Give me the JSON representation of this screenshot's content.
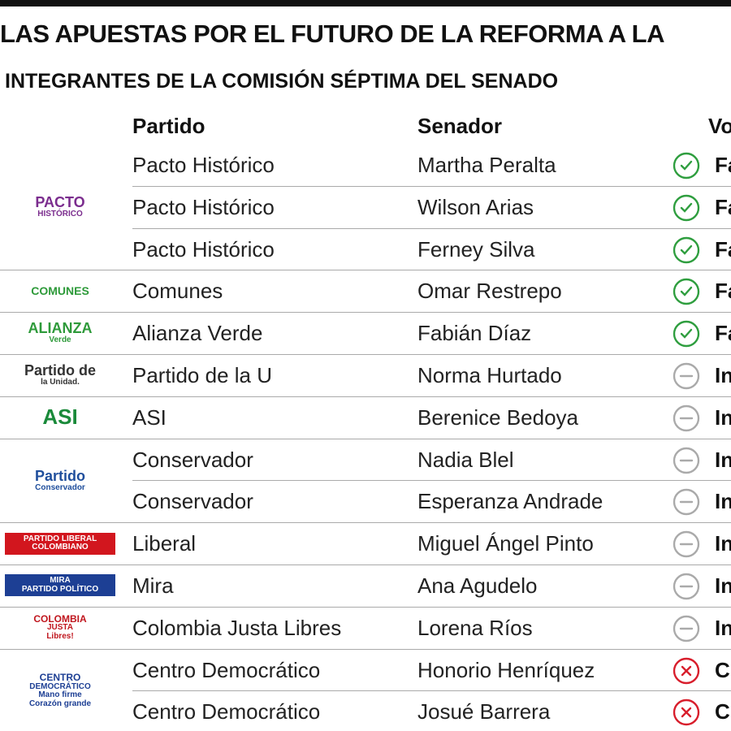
{
  "header": {
    "title": "LAS APUESTAS POR EL FUTURO DE LA REFORMA A LA",
    "subtitle": "INTEGRANTES DE LA COMISIÓN SÉPTIMA DEL SENADO"
  },
  "table": {
    "columns": [
      "Partido",
      "Senador",
      "Vo"
    ],
    "rows": [
      {
        "partido": "Pacto Histórico",
        "senador": "Martha Peralta",
        "voto": "Fa",
        "icon": "check"
      },
      {
        "partido": "Pacto Histórico",
        "senador": "Wilson Arias",
        "voto": "Fa",
        "icon": "check"
      },
      {
        "partido": "Pacto Histórico",
        "senador": "Ferney Silva",
        "voto": "Fa",
        "icon": "check"
      },
      {
        "partido": "Comunes",
        "senador": "Omar Restrepo",
        "voto": "Fa",
        "icon": "check"
      },
      {
        "partido": "Alianza Verde",
        "senador": "Fabián Díaz",
        "voto": "Fa",
        "icon": "check"
      },
      {
        "partido": "Partido de la U",
        "senador": "Norma Hurtado",
        "voto": "In",
        "icon": "neutral"
      },
      {
        "partido": "ASI",
        "senador": "Berenice Bedoya",
        "voto": "In",
        "icon": "neutral"
      },
      {
        "partido": "Conservador",
        "senador": "Nadia Blel",
        "voto": "In",
        "icon": "neutral"
      },
      {
        "partido": "Conservador",
        "senador": "Esperanza Andrade",
        "voto": "In",
        "icon": "neutral"
      },
      {
        "partido": "Liberal",
        "senador": "Miguel Ángel Pinto",
        "voto": "In",
        "icon": "neutral"
      },
      {
        "partido": "Mira",
        "senador": "Ana Agudelo",
        "voto": "In",
        "icon": "neutral"
      },
      {
        "partido": "Colombia Justa Libres",
        "senador": "Lorena Ríos",
        "voto": "In",
        "icon": "neutral"
      },
      {
        "partido": "Centro Democrático",
        "senador": "Honorio Henríquez",
        "voto": "C",
        "icon": "cross"
      },
      {
        "partido": "Centro Democrático",
        "senador": "Josué Barrera",
        "voto": "C",
        "icon": "cross"
      }
    ]
  },
  "logos": [
    {
      "span": 3,
      "lines": [
        "PACTO",
        "HISTÓRICO"
      ],
      "color": "#7b2d8e"
    },
    {
      "span": 1,
      "lines": [
        "COMUNES"
      ],
      "color": "#2e9a3a"
    },
    {
      "span": 1,
      "lines": [
        "ALIANZA",
        "Verde"
      ],
      "color": "#2e9a3a"
    },
    {
      "span": 1,
      "lines": [
        "Partido de",
        "la Unidad."
      ],
      "color": "#333333"
    },
    {
      "span": 1,
      "lines": [
        "ASI"
      ],
      "color": "#1a8a3a"
    },
    {
      "span": 2,
      "lines": [
        "Partido",
        "Conservador"
      ],
      "color": "#1f4e9c"
    },
    {
      "span": 1,
      "lines": [
        "PARTIDO LIBERAL",
        "COLOMBIANO"
      ],
      "color": "#ffffff",
      "bg": "#d2161e"
    },
    {
      "span": 1,
      "lines": [
        "MIRA",
        "PARTIDO POLÍTICO"
      ],
      "color": "#ffffff",
      "bg": "#1d3f94"
    },
    {
      "span": 1,
      "lines": [
        "COLOMBIA",
        "JUSTA",
        "Libres!"
      ],
      "color": "#c0161e"
    },
    {
      "span": 2,
      "lines": [
        "CENTRO",
        "DEMOCRÁTICO",
        "Mano firme",
        "Corazón grande"
      ],
      "color": "#1d3f94"
    }
  ]
}
